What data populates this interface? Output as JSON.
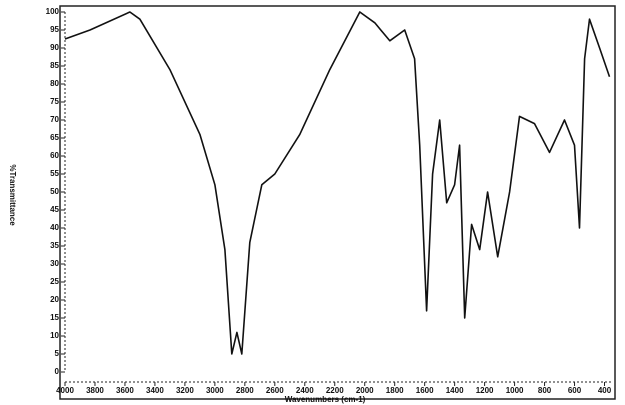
{
  "chart_data": {
    "type": "line",
    "x_label": "Wavenumbers (cm-1)",
    "y_label": "%Transmittance",
    "x": [
      4000,
      3833,
      3567,
      3500,
      3300,
      3100,
      3000,
      2933,
      2887,
      2853,
      2820,
      2767,
      2687,
      2600,
      2433,
      2233,
      2033,
      1933,
      1833,
      1733,
      1667,
      1633,
      1587,
      1547,
      1500,
      1453,
      1400,
      1367,
      1333,
      1287,
      1233,
      1180,
      1113,
      1033,
      967,
      867,
      767,
      667,
      600,
      567,
      533,
      500,
      433,
      367
    ],
    "series": [
      {
        "color": "#111111",
        "values": [
          92.5,
          95,
          100,
          98,
          84,
          66,
          52,
          34,
          5,
          11,
          5,
          36,
          52,
          55,
          66,
          84,
          100,
          97,
          92,
          95,
          87,
          63,
          17,
          55,
          70,
          47,
          52,
          63,
          15,
          41,
          34,
          50,
          32,
          50,
          71,
          69,
          61,
          70,
          63,
          40,
          87,
          98,
          90,
          82
        ]
      }
    ],
    "xlim": [
      4000,
      350
    ],
    "ylim": [
      0,
      100
    ],
    "xticks": [
      4000,
      3800,
      3600,
      3400,
      3200,
      3000,
      2800,
      2600,
      2400,
      2200,
      2000,
      1800,
      1600,
      1400,
      1200,
      1000,
      800,
      600,
      400
    ],
    "yticks": [
      0,
      5,
      10,
      15,
      20,
      25,
      30,
      35,
      40,
      45,
      50,
      55,
      60,
      65,
      70,
      75,
      80,
      85,
      90,
      95,
      100
    ]
  }
}
